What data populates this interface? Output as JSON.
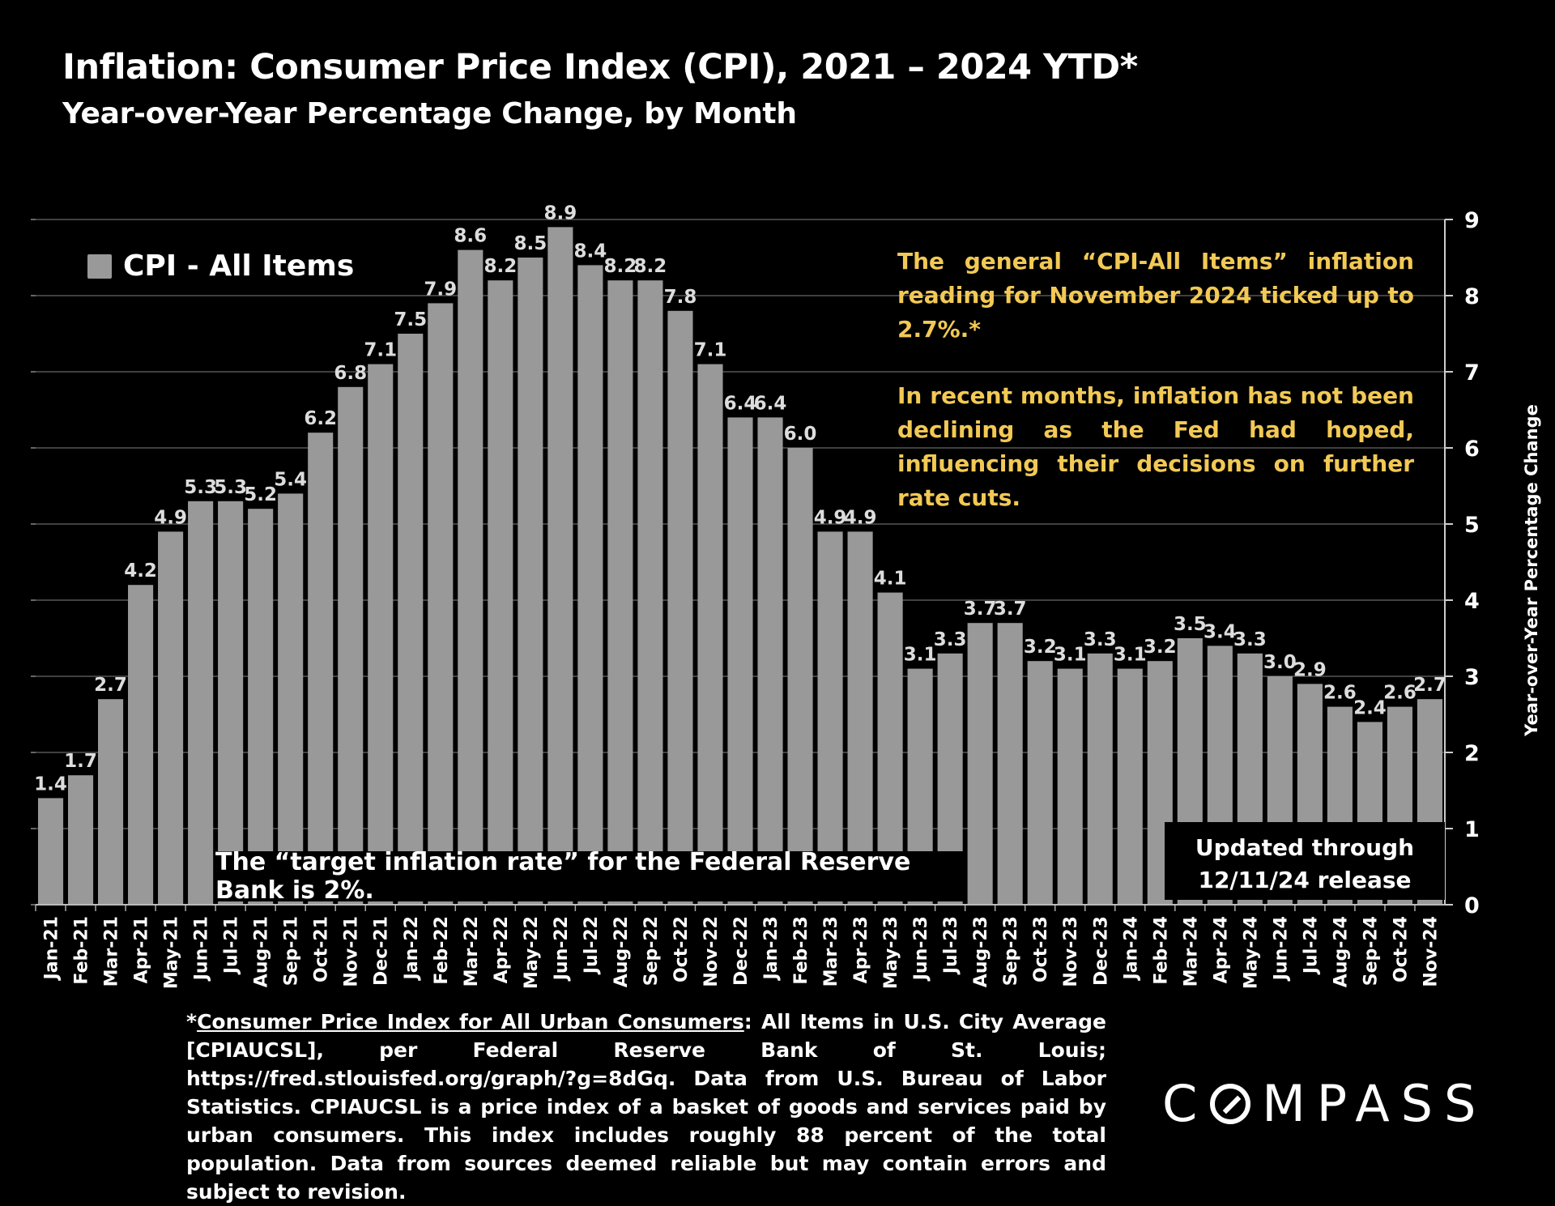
{
  "title": "Inflation: Consumer Price Index (CPI), 2021 – 2024 YTD*",
  "subtitle": "Year-over-Year Percentage Change, by Month",
  "legend_label": "CPI - All Items",
  "annotation": {
    "p1": "The general “CPI-All Items” inflation reading for November 2024 ticked up to 2.7%.*",
    "p2": "In recent months, inflation has not been declining as the Fed had hoped, influencing their decisions on further rate cuts."
  },
  "target_note": "The “target inflation rate” for the Federal Reserve Bank is 2%.",
  "updated": {
    "line1": "Updated through",
    "line2": "12/11/24 release"
  },
  "footnote": {
    "star": "*",
    "link": "Consumer Price Index for All Urban Consumers",
    "text": ": All Items in U.S. City Average [CPIAUCSL], per Federal Reserve Bank of St. Louis; https://fred.stlouisfed.org/graph/?g=8dGq. Data from U.S. Bureau of Labor Statistics. CPIAUCSL is a price index of a basket of goods and services paid by urban consumers. This index includes roughly 88 percent of the total population. Data from sources deemed reliable but may contain errors and subject to revision."
  },
  "logo": {
    "before": "C",
    "after": "MPASS"
  },
  "colors": {
    "bar": "#999999",
    "annotation": "#f2c955",
    "grid": "#555555",
    "background": "#000000"
  },
  "chart_data": {
    "type": "bar",
    "title": "Inflation: Consumer Price Index (CPI), 2021 – 2024 YTD*",
    "subtitle": "Year-over-Year Percentage Change, by Month",
    "ylabel": "Year-over-Year Percentage Change",
    "y_axis_side": "right",
    "ylim": [
      0,
      9
    ],
    "yticks": [
      0,
      1,
      2,
      3,
      4,
      5,
      6,
      7,
      8,
      9
    ],
    "grid": true,
    "legend_position": "top-left",
    "categories": [
      "Jan-21",
      "Feb-21",
      "Mar-21",
      "Apr-21",
      "May-21",
      "Jun-21",
      "Jul-21",
      "Aug-21",
      "Sep-21",
      "Oct-21",
      "Nov-21",
      "Dec-21",
      "Jan-22",
      "Feb-22",
      "Mar-22",
      "Apr-22",
      "May-22",
      "Jun-22",
      "Jul-22",
      "Aug-22",
      "Sep-22",
      "Oct-22",
      "Nov-22",
      "Dec-22",
      "Jan-23",
      "Feb-23",
      "Mar-23",
      "Apr-23",
      "May-23",
      "Jun-23",
      "Jul-23",
      "Aug-23",
      "Sep-23",
      "Oct-23",
      "Nov-23",
      "Dec-23",
      "Jan-24",
      "Feb-24",
      "Mar-24",
      "Apr-24",
      "May-24",
      "Jun-24",
      "Jul-24",
      "Aug-24",
      "Sep-24",
      "Oct-24",
      "Nov-24"
    ],
    "series": [
      {
        "name": "CPI - All Items",
        "values": [
          1.4,
          1.7,
          2.7,
          4.2,
          4.9,
          5.3,
          5.3,
          5.2,
          5.4,
          6.2,
          6.8,
          7.1,
          7.5,
          7.9,
          8.6,
          8.2,
          8.5,
          8.9,
          8.4,
          8.2,
          8.2,
          7.8,
          7.1,
          6.4,
          6.4,
          6.0,
          4.9,
          4.9,
          4.1,
          3.1,
          3.3,
          3.7,
          3.7,
          3.2,
          3.1,
          3.3,
          3.1,
          3.2,
          3.5,
          3.4,
          3.3,
          3.0,
          2.9,
          2.6,
          2.4,
          2.6,
          2.7
        ],
        "labels": [
          "1.4",
          "1.7",
          "2.7",
          "4.2",
          "4.9",
          "5.3",
          "5.3",
          "5.2",
          "5.4",
          "6.2",
          "6.8",
          "7.1",
          "7.5",
          "7.9",
          "8.6",
          "8.2",
          "8.5",
          "8.9",
          "8.4",
          "8.2",
          "8.2",
          "7.8",
          "7.1",
          "6.4",
          "6.4",
          "6.0",
          "4.9",
          "4.9",
          "4.1",
          "3.1",
          "3.3",
          "3.7",
          "3.7",
          "3.2",
          "3.1",
          "3.3",
          "3.1",
          "3.2",
          "3.5",
          "3.4",
          "3.3",
          "3.0",
          "2.9",
          "2.6",
          "2.4",
          "2.6",
          "2.7"
        ]
      }
    ]
  }
}
